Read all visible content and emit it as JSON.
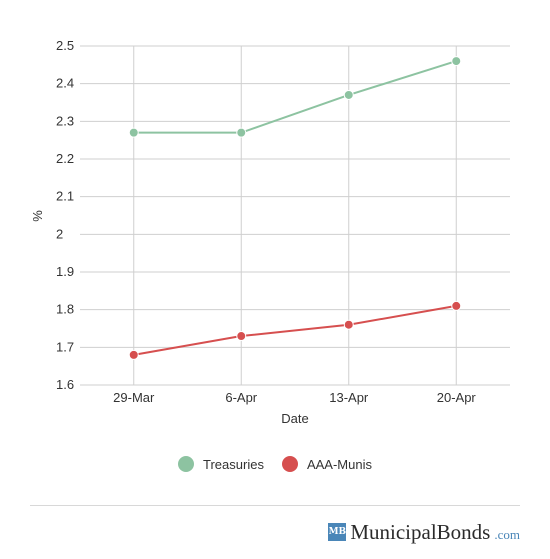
{
  "chart_data": {
    "type": "line",
    "categories": [
      "29-Mar",
      "6-Apr",
      "13-Apr",
      "20-Apr"
    ],
    "series": [
      {
        "name": "Treasuries",
        "values": [
          2.27,
          2.27,
          2.37,
          2.46
        ],
        "color": "#8dc3a1"
      },
      {
        "name": "AAA-Munis",
        "values": [
          1.68,
          1.73,
          1.76,
          1.81
        ],
        "color": "#d64f4f"
      }
    ],
    "yticks": [
      "1.6",
      "1.7",
      "1.8",
      "1.9",
      "2",
      "2.1",
      "2.2",
      "2.3",
      "2.4",
      "2.5"
    ],
    "ylim": [
      1.6,
      2.5
    ],
    "xlabel": "Date",
    "ylabel": "%",
    "grid": true,
    "legend_position": "bottom"
  },
  "branding": {
    "badge": "MB",
    "name": "MunicipalBonds",
    "tld": ".com"
  }
}
